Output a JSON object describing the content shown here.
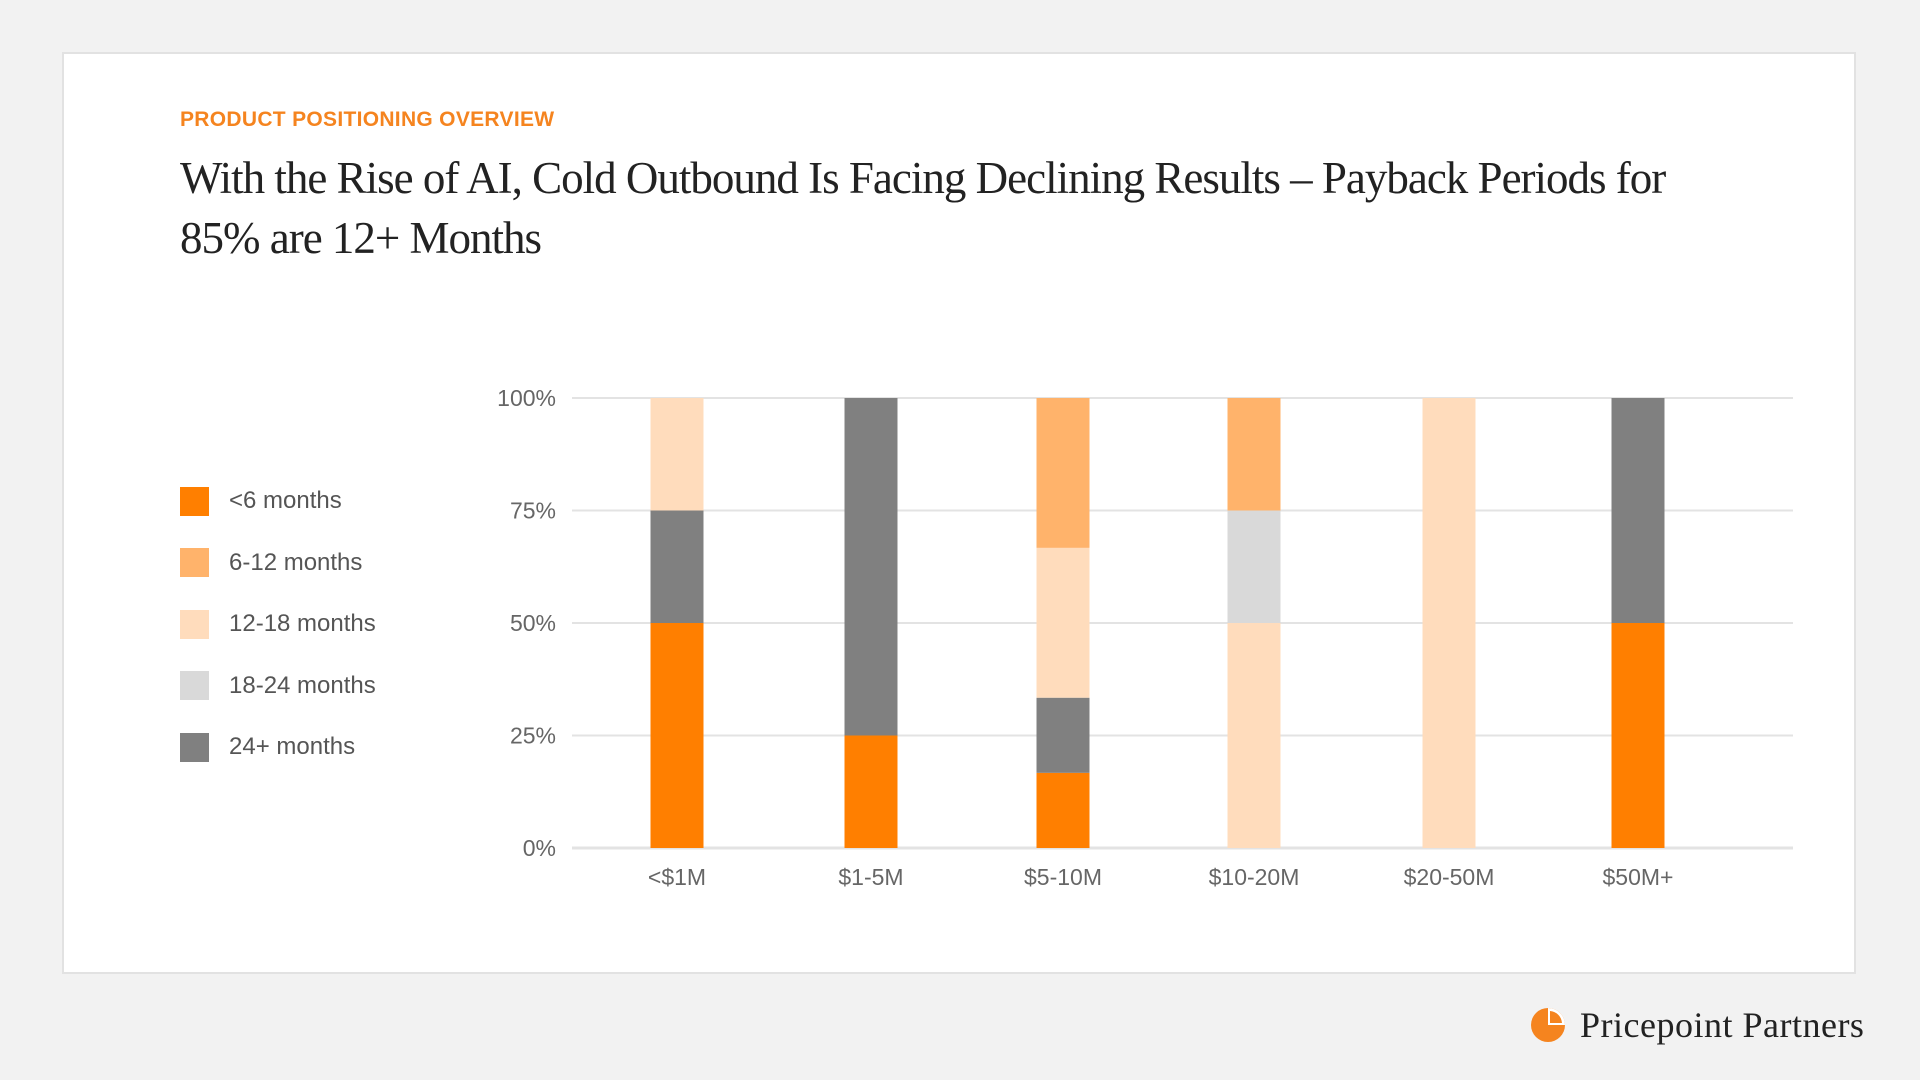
{
  "header": {
    "eyebrow": "PRODUCT POSITIONING OVERVIEW",
    "title": "With the Rise of AI, Cold Outbound Is Facing Declining Results – Payback Periods for 85% are 12+ Months"
  },
  "brand": {
    "name": "Pricepoint  Partners",
    "logo_icon": "pie-logo-icon",
    "accent": "#f5841f"
  },
  "chart_data": {
    "type": "bar",
    "stacked": true,
    "categories": [
      "<$1M",
      "$1-5M",
      "$5-10M",
      "$10-20M",
      "$20-50M",
      "$50M+"
    ],
    "series": [
      {
        "name": "<6 months",
        "color": "#ff7f00",
        "values": [
          50,
          25,
          16.7,
          0,
          0,
          50
        ]
      },
      {
        "name": "6-12 months",
        "color": "#ffb36b",
        "values": [
          0,
          0,
          33.3,
          25,
          0,
          0
        ]
      },
      {
        "name": "12-18 months",
        "color": "#ffdcbc",
        "values": [
          25,
          0,
          33.3,
          50,
          100,
          0
        ]
      },
      {
        "name": "18-24 months",
        "color": "#d9d9d9",
        "values": [
          0,
          0,
          0,
          25,
          0,
          0
        ]
      },
      {
        "name": "24+ months",
        "color": "#808080",
        "values": [
          25,
          75,
          16.7,
          0,
          0,
          50
        ]
      }
    ],
    "stack_order": [
      "<6 months",
      "24+ months",
      "12-18 months",
      "18-24 months",
      "6-12 months"
    ],
    "yticks": [
      "0%",
      "25%",
      "50%",
      "75%",
      "100%"
    ],
    "ylim": [
      0,
      100
    ],
    "grid": true,
    "legend": "left",
    "gridline_color": "#e3e3e3"
  }
}
